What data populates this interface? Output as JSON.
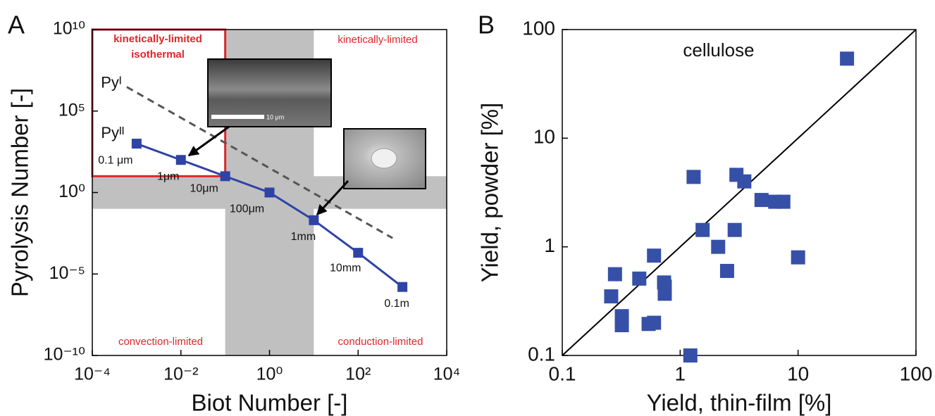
{
  "chart_data": [
    {
      "type": "line",
      "panel_label": "A",
      "xlabel": "Biot Number [-]",
      "ylabel": "Pyrolysis Number [-]",
      "xlog": true,
      "ylog": true,
      "xlim": [
        0.0001,
        10000
      ],
      "ylim": [
        1e-10,
        10000000000
      ],
      "xticks": [
        {
          "value": 0.0001,
          "label": "10⁻⁴"
        },
        {
          "value": 0.01,
          "label": "10⁻²"
        },
        {
          "value": 1,
          "label": "10⁰"
        },
        {
          "value": 100,
          "label": "10²"
        },
        {
          "value": 10000,
          "label": "10⁴"
        }
      ],
      "yticks": [
        {
          "value": 1e-10,
          "label": "10⁻¹⁰"
        },
        {
          "value": 1e-05,
          "label": "10⁻⁵"
        },
        {
          "value": 1,
          "label": "10⁰"
        },
        {
          "value": 100000,
          "label": "10⁵"
        },
        {
          "value": 10000000000,
          "label": "10¹⁰"
        }
      ],
      "shaded_x": [
        0.1,
        10
      ],
      "shaded_y": [
        0.1,
        10
      ],
      "shade_color": "#c0c0c0",
      "red_box_x": [
        0.0001,
        0.1
      ],
      "red_box_y": [
        10,
        10000000000
      ],
      "red_color": "#e0262b",
      "annotations": [
        "kinetically-limited",
        "isothermal",
        "kinetically-limited",
        "convection-limited",
        "conduction-limited"
      ],
      "inset_scale": "10 μm",
      "series": [
        {
          "name": "Pyᴵᴵ",
          "color": "#2e43a6",
          "x": [
            0.001,
            0.01,
            0.1,
            1,
            10,
            100,
            1000
          ],
          "values": [
            1000,
            100,
            10,
            1,
            0.02,
            0.0002,
            1.6e-06
          ],
          "point_labels": [
            "0.1 μm",
            "1μm",
            "10μm",
            "100μm",
            "1mm",
            "10mm",
            "0.1m"
          ]
        },
        {
          "name": "Pyᴵ",
          "color": "#555555",
          "dashed": true,
          "x": [
            0.0006,
            600
          ],
          "values": [
            3000000,
            0.0016
          ]
        }
      ]
    },
    {
      "type": "scatter",
      "panel_label": "B",
      "xlabel": "Yield, thin-film [%]",
      "ylabel": "Yield, powder  [%]",
      "xlog": true,
      "ylog": true,
      "identity_line": true,
      "xlim": [
        0.1,
        100
      ],
      "ylim": [
        0.1,
        100
      ],
      "xticks": [
        0.1,
        1,
        10,
        100
      ],
      "yticks": [
        0.1,
        1,
        10,
        100
      ],
      "annotation": "cellulose",
      "series": [
        {
          "color": "#3650a8",
          "x": [
            26,
            1.3,
            3.0,
            3.5,
            4.9,
            6.4,
            7.5,
            1.55,
            2.9,
            2.1,
            2.5,
            10,
            0.6,
            0.28,
            0.45,
            0.73,
            0.74,
            0.74,
            0.26,
            0.32,
            0.32,
            0.54,
            0.6,
            1.22
          ],
          "values": [
            54,
            4.4,
            4.6,
            4.0,
            2.7,
            2.6,
            2.6,
            1.43,
            1.43,
            1.0,
            0.6,
            0.8,
            0.83,
            0.56,
            0.51,
            0.47,
            0.43,
            0.37,
            0.35,
            0.23,
            0.19,
            0.195,
            0.2,
            0.1
          ]
        }
      ]
    }
  ]
}
